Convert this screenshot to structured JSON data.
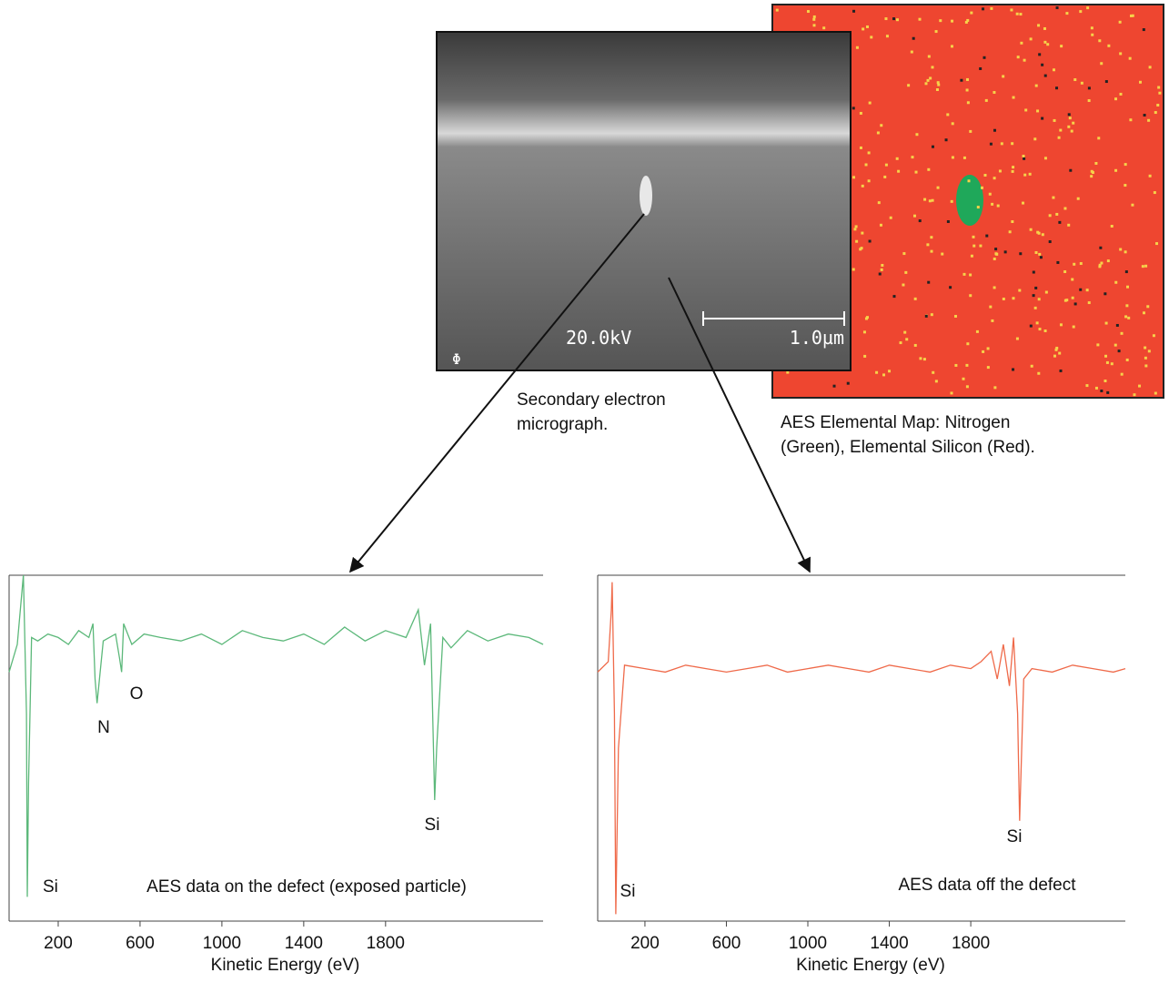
{
  "images": {
    "sem": {
      "voltage": "20.0kV",
      "scale": "1.0µm",
      "caption": [
        "Secondary electron",
        "micrograph."
      ]
    },
    "map": {
      "caption": [
        "AES Elemental Map: Nitrogen",
        "(Green), Elemental Silicon (Red)."
      ]
    }
  },
  "chart_data": [
    {
      "type": "line",
      "xlabel": "Kinetic Energy (eV)",
      "xlim": [
        -40,
        2570
      ],
      "ylim": [
        0,
        100
      ],
      "xticks": [
        200,
        600,
        1000,
        1400,
        1800
      ],
      "x": [
        -40,
        0,
        30,
        45,
        49,
        55,
        70,
        100,
        150,
        200,
        250,
        300,
        350,
        370,
        380,
        390,
        420,
        480,
        500,
        510,
        520,
        560,
        620,
        700,
        800,
        900,
        1000,
        1100,
        1200,
        1300,
        1400,
        1500,
        1600,
        1700,
        1800,
        1900,
        1960,
        1990,
        2020,
        2040,
        2050,
        2080,
        2120,
        2200,
        2300,
        2400,
        2500,
        2570
      ],
      "series": [
        {
          "color": "#5cb87a",
          "values": [
            72,
            80,
            100,
            60,
            7,
            40,
            82,
            81,
            83,
            82,
            80,
            84,
            82,
            86,
            70,
            63,
            81,
            83,
            76,
            72,
            86,
            80,
            83,
            82,
            81,
            83,
            80,
            84,
            82,
            81,
            83,
            80,
            85,
            81,
            84,
            82,
            90,
            74,
            86,
            35,
            50,
            82,
            79,
            84,
            81,
            83,
            82,
            80
          ]
        }
      ],
      "annotations": [
        "Si",
        "N",
        "O",
        "Si",
        "AES data on the defect (exposed particle)"
      ]
    },
    {
      "type": "line",
      "xlabel": "Kinetic Energy (eV)",
      "xlim": [
        -32,
        2559
      ],
      "ylim": [
        0,
        100
      ],
      "xticks": [
        200,
        600,
        1000,
        1400,
        1800
      ],
      "x": [
        -32,
        20,
        35,
        39,
        50,
        57,
        70,
        100,
        200,
        300,
        400,
        500,
        600,
        700,
        800,
        900,
        1000,
        1100,
        1200,
        1300,
        1400,
        1500,
        1600,
        1700,
        1800,
        1850,
        1900,
        1930,
        1960,
        1990,
        2010,
        2030,
        2040,
        2060,
        2100,
        2200,
        2300,
        2400,
        2500,
        2559
      ],
      "series": [
        {
          "color": "#ef6a4a",
          "values": [
            72,
            75,
            90,
            98,
            60,
            2,
            50,
            74,
            73,
            72,
            74,
            73,
            72,
            73,
            74,
            72,
            73,
            74,
            73,
            72,
            74,
            73,
            72,
            74,
            73,
            75,
            78,
            70,
            80,
            68,
            82,
            60,
            29,
            70,
            73,
            72,
            74,
            73,
            72,
            73
          ]
        }
      ],
      "annotations": [
        "Si",
        "Si",
        "AES data off the defect"
      ]
    }
  ]
}
